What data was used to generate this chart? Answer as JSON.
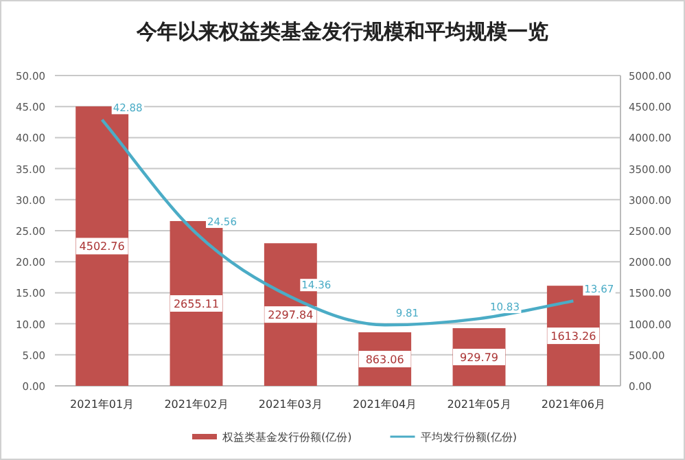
{
  "chart_data": {
    "type": "bar",
    "title": "今年以来权益类基金发行规模和平均规模一览",
    "categories": [
      "2021年01月",
      "2021年02月",
      "2021年03月",
      "2021年04月",
      "2021年05月",
      "2021年06月"
    ],
    "series": [
      {
        "name": "权益类基金发行份额(亿份)",
        "type": "bar",
        "axis": "y2",
        "color": "#c0504d",
        "values": [
          4502.76,
          2655.11,
          2297.84,
          863.06,
          929.79,
          1613.26
        ]
      },
      {
        "name": "平均发行份额(亿份)",
        "type": "line",
        "axis": "y",
        "color": "#4bacc6",
        "values": [
          42.88,
          24.56,
          14.36,
          9.81,
          10.83,
          13.67
        ]
      }
    ],
    "ylim": [
      0,
      50
    ],
    "yticks": [
      {
        "value": 0,
        "label": "0.00"
      },
      {
        "value": 5,
        "label": "5.00"
      },
      {
        "value": 10,
        "label": "10.00"
      },
      {
        "value": 15,
        "label": "15.00"
      },
      {
        "value": 20,
        "label": "20.00"
      },
      {
        "value": 25,
        "label": "25.00"
      },
      {
        "value": 30,
        "label": "30.00"
      },
      {
        "value": 35,
        "label": "35.00"
      },
      {
        "value": 40,
        "label": "40.00"
      },
      {
        "value": 45,
        "label": "45.00"
      },
      {
        "value": 50,
        "label": "50.00"
      }
    ],
    "y2lim": [
      0,
      5000
    ],
    "y2ticks": [
      {
        "value": 0,
        "label": "0.00"
      },
      {
        "value": 500,
        "label": "500.00"
      },
      {
        "value": 1000,
        "label": "1000.00"
      },
      {
        "value": 1500,
        "label": "1500.00"
      },
      {
        "value": 2000,
        "label": "2000.00"
      },
      {
        "value": 2500,
        "label": "2500.00"
      },
      {
        "value": 3000,
        "label": "3000.00"
      },
      {
        "value": 3500,
        "label": "3500.00"
      },
      {
        "value": 4000,
        "label": "4000.00"
      },
      {
        "value": 4500,
        "label": "4500.00"
      },
      {
        "value": 5000,
        "label": "5000.00"
      }
    ],
    "grid": "y",
    "legend": "bottom",
    "data_labels": true
  }
}
